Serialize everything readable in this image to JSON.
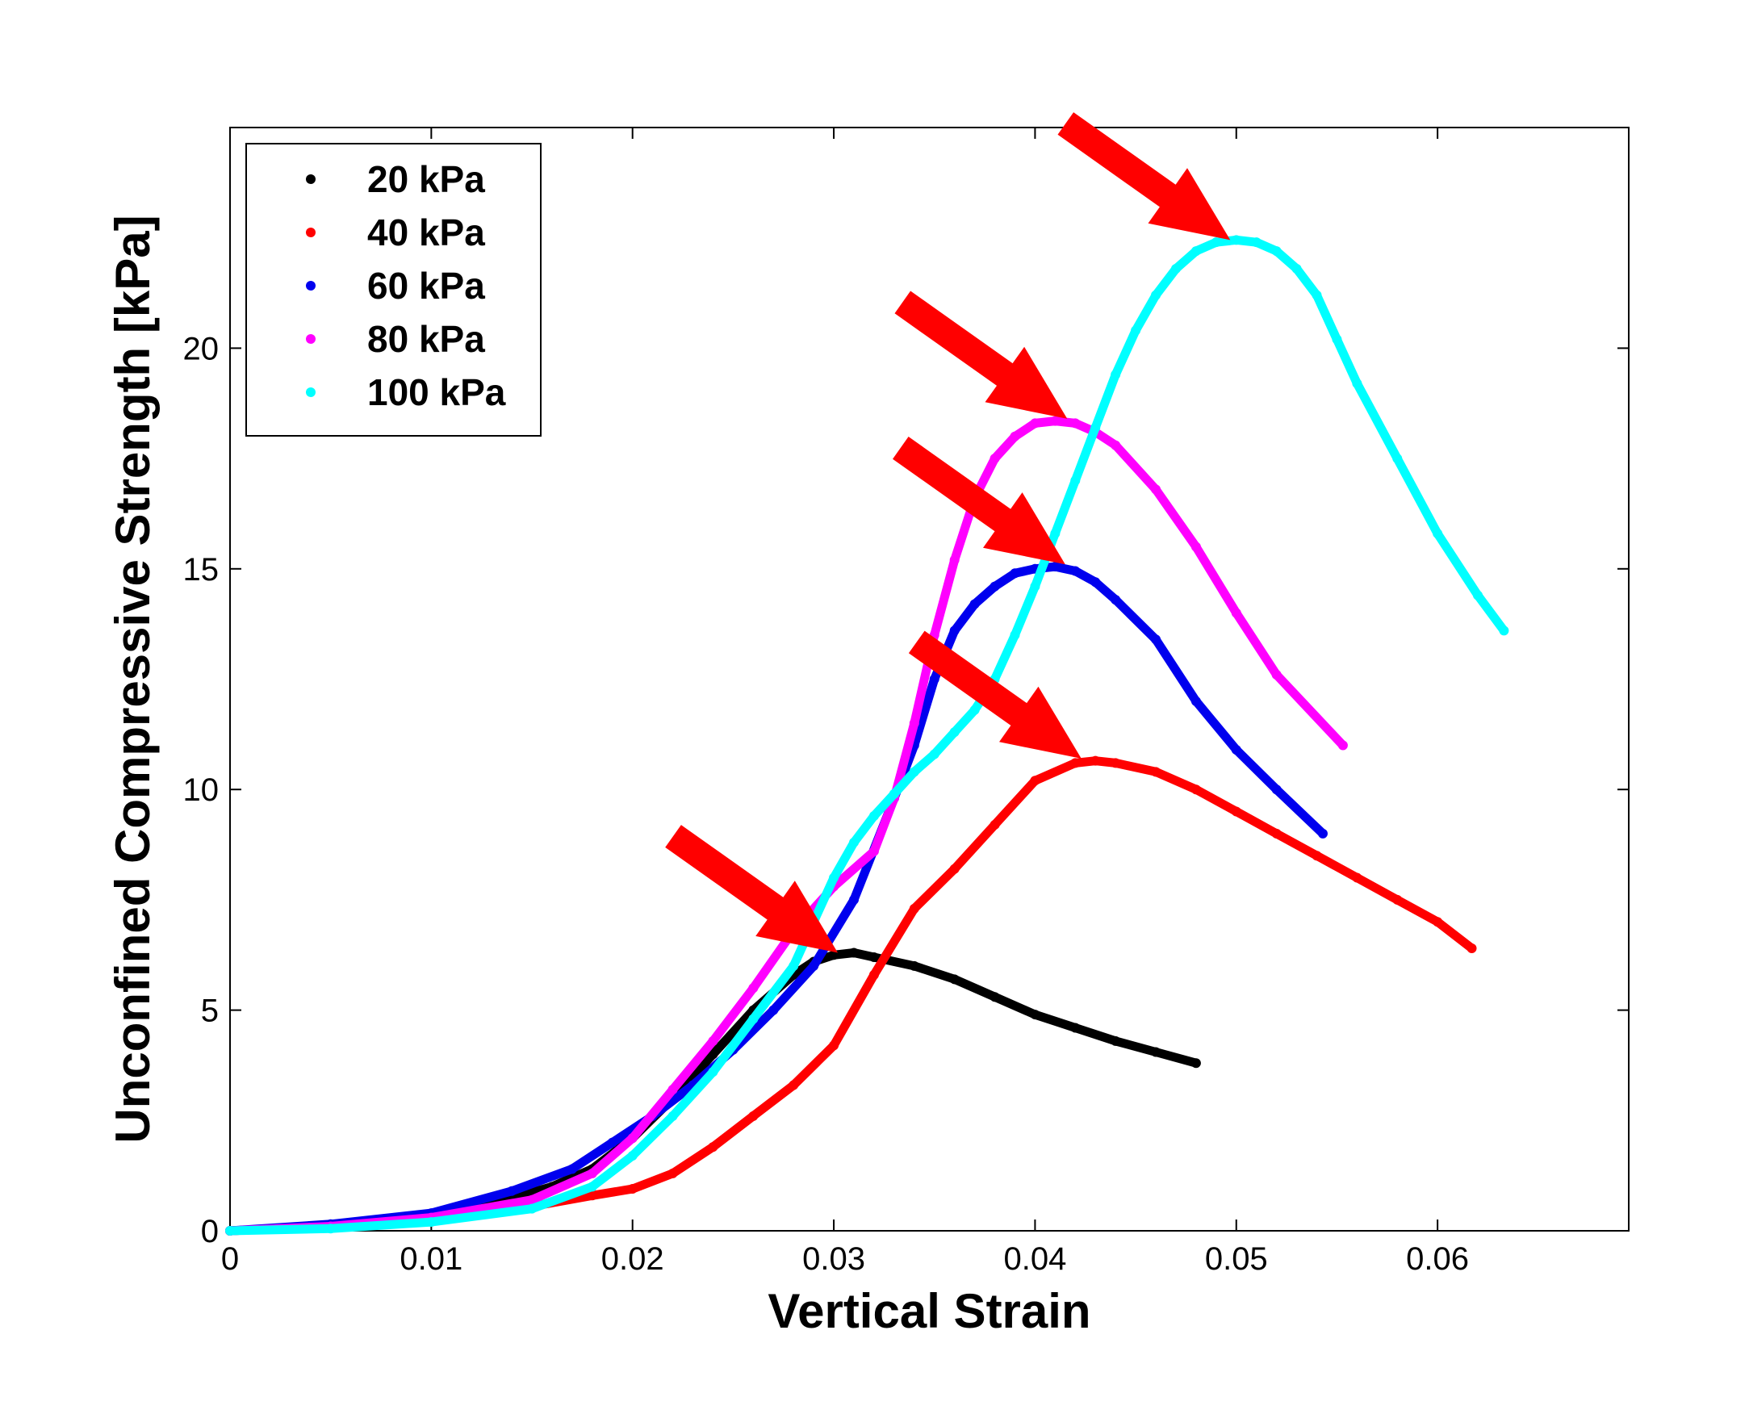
{
  "chart_data": {
    "type": "scatter",
    "title": "",
    "xlabel": "Vertical Strain",
    "ylabel": "Unconfined Compressive Strength [kPa]",
    "xlim": [
      0,
      0.0695
    ],
    "ylim": [
      0,
      25
    ],
    "x_ticks": [
      0,
      0.01,
      0.02,
      0.03,
      0.04,
      0.05,
      0.06
    ],
    "x_tick_labels": [
      "0",
      "0.01",
      "0.02",
      "0.03",
      "0.04",
      "0.05",
      "0.06"
    ],
    "y_ticks": [
      0,
      5,
      10,
      15,
      20
    ],
    "y_tick_labels": [
      "0",
      "5",
      "10",
      "15",
      "20"
    ],
    "grid": false,
    "legend": {
      "position": "top-left"
    },
    "series": [
      {
        "name": "20 kPa",
        "color": "#000000",
        "x": [
          0,
          0.005,
          0.01,
          0.013,
          0.016,
          0.018,
          0.02,
          0.022,
          0.024,
          0.026,
          0.028,
          0.029,
          0.03,
          0.031,
          0.032,
          0.034,
          0.036,
          0.038,
          0.04,
          0.042,
          0.044,
          0.046,
          0.048
        ],
        "y": [
          0,
          0.1,
          0.3,
          0.6,
          1.0,
          1.4,
          2.1,
          3.0,
          4.0,
          5.0,
          5.8,
          6.1,
          6.25,
          6.3,
          6.2,
          6.0,
          5.7,
          5.3,
          4.9,
          4.6,
          4.3,
          4.05,
          3.8
        ]
      },
      {
        "name": "40 kPa",
        "color": "#ff0000",
        "x": [
          0,
          0.005,
          0.01,
          0.015,
          0.018,
          0.02,
          0.022,
          0.024,
          0.026,
          0.028,
          0.03,
          0.032,
          0.034,
          0.036,
          0.038,
          0.04,
          0.042,
          0.043,
          0.044,
          0.046,
          0.048,
          0.05,
          0.052,
          0.054,
          0.056,
          0.058,
          0.06,
          0.0617
        ],
        "y": [
          0,
          0.1,
          0.3,
          0.55,
          0.8,
          0.95,
          1.3,
          1.9,
          2.6,
          3.3,
          4.2,
          5.8,
          7.3,
          8.2,
          9.2,
          10.2,
          10.6,
          10.65,
          10.6,
          10.4,
          10.0,
          9.5,
          9.0,
          8.5,
          8.0,
          7.5,
          7.0,
          6.4
        ]
      },
      {
        "name": "60 kPa",
        "color": "#0000ee",
        "x": [
          0,
          0.005,
          0.01,
          0.014,
          0.017,
          0.019,
          0.021,
          0.023,
          0.025,
          0.027,
          0.029,
          0.031,
          0.033,
          0.034,
          0.035,
          0.036,
          0.037,
          0.038,
          0.039,
          0.04,
          0.041,
          0.042,
          0.043,
          0.044,
          0.046,
          0.048,
          0.05,
          0.052,
          0.0543
        ],
        "y": [
          0,
          0.15,
          0.4,
          0.9,
          1.4,
          2.0,
          2.6,
          3.3,
          4.1,
          5.0,
          6.0,
          7.5,
          9.8,
          11.0,
          12.5,
          13.6,
          14.2,
          14.6,
          14.9,
          15.0,
          15.05,
          14.95,
          14.7,
          14.3,
          13.4,
          12.0,
          10.9,
          10.0,
          9.0
        ]
      },
      {
        "name": "80 kPa",
        "color": "#ff00ff",
        "x": [
          0,
          0.005,
          0.01,
          0.015,
          0.018,
          0.02,
          0.022,
          0.024,
          0.026,
          0.028,
          0.03,
          0.032,
          0.033,
          0.034,
          0.035,
          0.036,
          0.037,
          0.038,
          0.039,
          0.04,
          0.041,
          0.042,
          0.043,
          0.044,
          0.046,
          0.048,
          0.05,
          0.052,
          0.0553
        ],
        "y": [
          0,
          0.1,
          0.3,
          0.7,
          1.3,
          2.1,
          3.2,
          4.3,
          5.5,
          6.8,
          7.8,
          8.6,
          9.8,
          11.5,
          13.5,
          15.2,
          16.6,
          17.5,
          18.0,
          18.3,
          18.35,
          18.3,
          18.1,
          17.8,
          16.8,
          15.5,
          14.0,
          12.6,
          11.0
        ]
      },
      {
        "name": "100 kPa",
        "color": "#00ffff",
        "x": [
          0,
          0.005,
          0.01,
          0.015,
          0.018,
          0.02,
          0.022,
          0.024,
          0.026,
          0.028,
          0.029,
          0.03,
          0.031,
          0.032,
          0.033,
          0.034,
          0.035,
          0.036,
          0.037,
          0.038,
          0.039,
          0.04,
          0.041,
          0.042,
          0.043,
          0.044,
          0.045,
          0.046,
          0.047,
          0.048,
          0.049,
          0.05,
          0.051,
          0.052,
          0.053,
          0.054,
          0.055,
          0.056,
          0.058,
          0.06,
          0.062,
          0.0633
        ],
        "y": [
          0,
          0.05,
          0.2,
          0.5,
          1.0,
          1.7,
          2.6,
          3.6,
          4.8,
          6.0,
          7.0,
          8.0,
          8.8,
          9.4,
          9.9,
          10.4,
          10.8,
          11.3,
          11.8,
          12.5,
          13.5,
          14.6,
          15.8,
          17.0,
          18.2,
          19.4,
          20.4,
          21.2,
          21.8,
          22.2,
          22.4,
          22.45,
          22.4,
          22.2,
          21.8,
          21.2,
          20.2,
          19.2,
          17.5,
          15.8,
          14.4,
          13.6
        ]
      }
    ],
    "annotations": [
      {
        "type": "arrow",
        "color": "#ff0000",
        "target": [
          0.0302,
          6.3
        ]
      },
      {
        "type": "arrow",
        "color": "#ff0000",
        "target": [
          0.0415,
          15.1
        ]
      },
      {
        "type": "arrow",
        "color": "#ff0000",
        "target": [
          0.0423,
          10.7
        ]
      },
      {
        "type": "arrow",
        "color": "#ff0000",
        "target": [
          0.0416,
          18.4
        ]
      },
      {
        "type": "arrow",
        "color": "#ff0000",
        "target": [
          0.0497,
          22.45
        ]
      }
    ]
  }
}
